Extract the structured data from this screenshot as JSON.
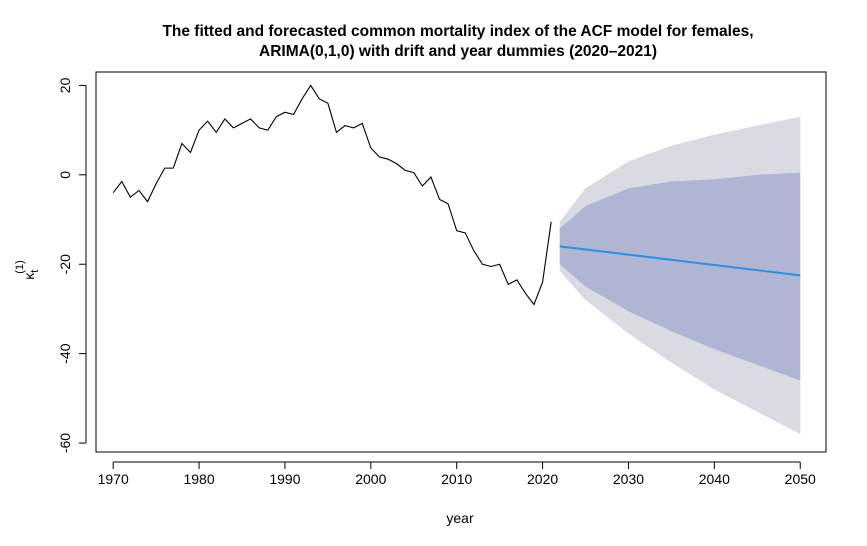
{
  "chart_data": {
    "type": "line",
    "title": "The fitted and forecasted common mortality index of the ACF model for females,",
    "subtitle": "ARIMA(0,1,0) with drift and year dummies (2020–2021)",
    "xlabel": "year",
    "ylabel_main": "κ",
    "ylabel_sub": "t",
    "ylabel_sup": "(1)",
    "xlim": [
      1968,
      2053
    ],
    "ylim": [
      -62,
      23
    ],
    "x_ticks": [
      1970,
      1980,
      1990,
      2000,
      2010,
      2020,
      2030,
      2040,
      2050
    ],
    "y_ticks": [
      -60,
      -40,
      -20,
      0,
      20
    ],
    "grid": false,
    "colors": {
      "history": "#000000",
      "forecast": "#2e8fe6",
      "band_inner": "#b0b5d4",
      "band_outer": "#dadae2"
    },
    "series": [
      {
        "kind": "history",
        "x": [
          1970,
          1971,
          1972,
          1973,
          1974,
          1975,
          1976,
          1977,
          1978,
          1979,
          1980,
          1981,
          1982,
          1983,
          1984,
          1985,
          1986,
          1987,
          1988,
          1989,
          1990,
          1991,
          1992,
          1993,
          1994,
          1995,
          1996,
          1997,
          1998,
          1999,
          2000,
          2001,
          2002,
          2003,
          2004,
          2005,
          2006,
          2007,
          2008,
          2009,
          2010,
          2011,
          2012,
          2013,
          2014,
          2015,
          2016,
          2017,
          2018,
          2019,
          2020,
          2021
        ],
        "y": [
          -4,
          -1.5,
          -5,
          -3.5,
          -6,
          -2,
          1.5,
          1.5,
          7,
          5,
          10,
          12,
          9.5,
          12.5,
          10.5,
          11.5,
          12.5,
          10.5,
          10,
          13,
          14,
          13.5,
          17,
          20,
          17,
          16,
          9.5,
          11,
          10.5,
          11.5,
          6,
          4,
          3.5,
          2.5,
          1,
          0.5,
          -2.5,
          -0.5,
          -5.5,
          -6.5,
          -12.5,
          -13,
          -17,
          -20,
          -20.5,
          -20,
          -24.5,
          -23.5,
          -26.5,
          -29,
          -24,
          -10.5
        ]
      },
      {
        "kind": "forecast",
        "x": [
          2022,
          2050
        ],
        "y": [
          -16,
          -22.5
        ]
      }
    ],
    "bands": [
      {
        "level": "outer",
        "x": [
          2022,
          2025,
          2030,
          2035,
          2040,
          2045,
          2050
        ],
        "lower": [
          -21.5,
          -28,
          -35.5,
          -42,
          -48,
          -53,
          -58
        ],
        "upper": [
          -10.5,
          -3,
          3,
          6.5,
          9,
          11,
          13
        ]
      },
      {
        "level": "inner",
        "x": [
          2022,
          2025,
          2030,
          2035,
          2040,
          2045,
          2050
        ],
        "lower": [
          -20,
          -25,
          -30.5,
          -35,
          -39,
          -42.5,
          -46
        ],
        "upper": [
          -12,
          -7,
          -3,
          -1.5,
          -1,
          0,
          0.5
        ]
      }
    ]
  }
}
